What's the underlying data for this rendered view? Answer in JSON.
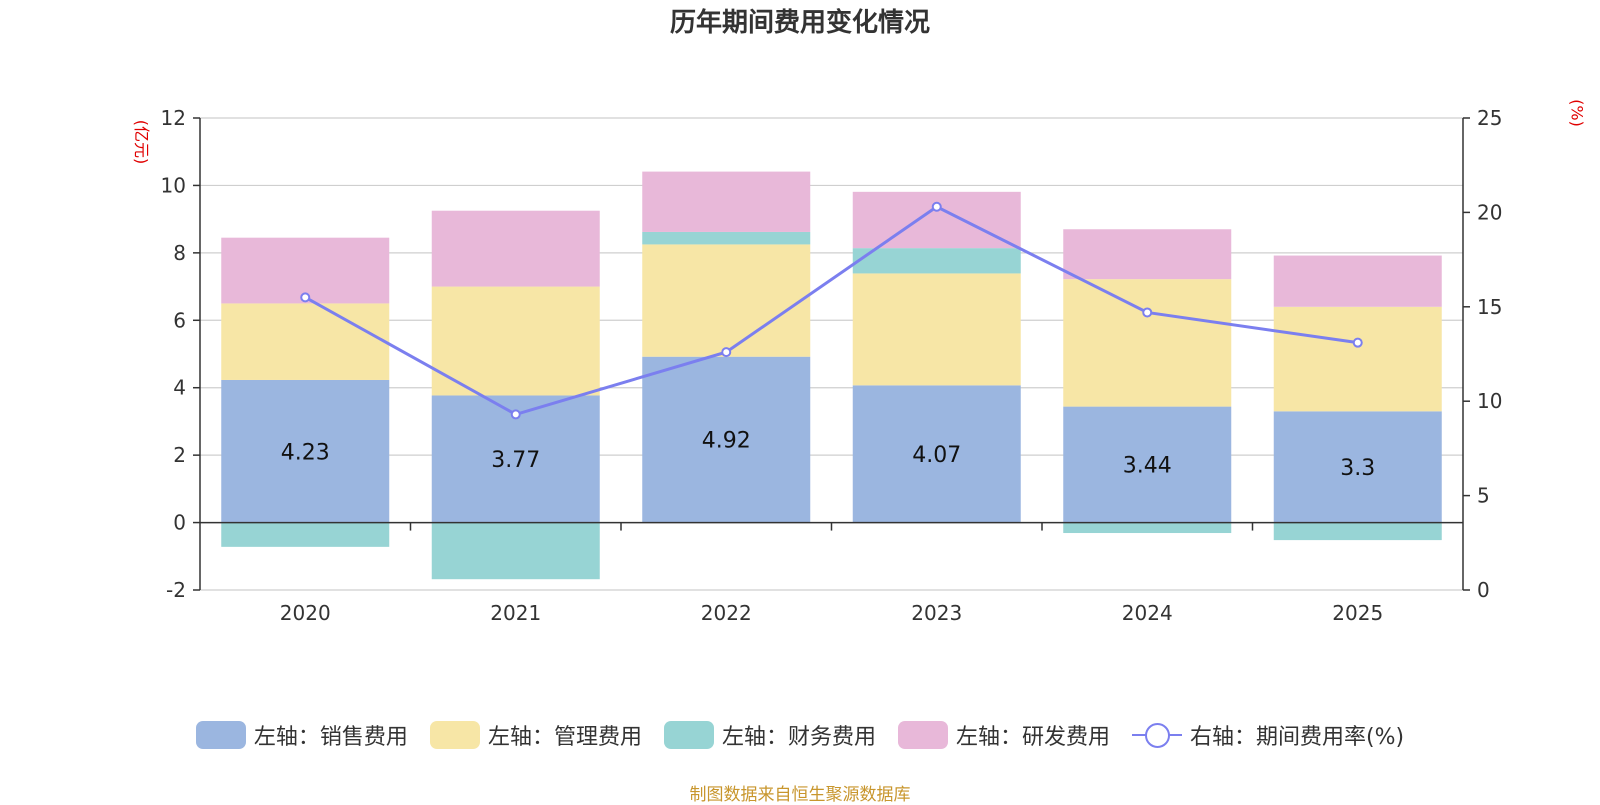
{
  "chart_data": {
    "type": "bar",
    "stacked": true,
    "title": "历年期间费用变化情况",
    "categories": [
      "2020",
      "2021",
      "2022",
      "2023",
      "2024",
      "2025"
    ],
    "left_axis": {
      "unit": "(亿元)",
      "ylim": [
        -2,
        12
      ],
      "ticks": [
        "-2",
        "0",
        "2",
        "4",
        "6",
        "8",
        "10",
        "12"
      ]
    },
    "right_axis": {
      "unit": "(%)",
      "ylim": [
        0,
        25
      ],
      "ticks": [
        "0",
        "5",
        "10",
        "15",
        "20",
        "25"
      ]
    },
    "series": [
      {
        "name": "左轴：销售费用",
        "color": "#9bb6e0",
        "values": [
          4.23,
          3.77,
          4.92,
          4.07,
          3.44,
          3.3
        ],
        "labels": [
          "4.23",
          "3.77",
          "4.92",
          "4.07",
          "3.44",
          "3.3"
        ]
      },
      {
        "name": "左轴：管理费用",
        "color": "#f7e6a6",
        "values": [
          2.27,
          3.23,
          3.33,
          3.32,
          3.78,
          3.1
        ]
      },
      {
        "name": "左轴：财务费用",
        "color": "#97d4d4",
        "values": [
          -0.72,
          -1.68,
          0.37,
          0.75,
          -0.31,
          -0.52
        ]
      },
      {
        "name": "左轴：研发费用",
        "color": "#e8b8d9",
        "values": [
          1.95,
          2.25,
          1.79,
          1.67,
          1.48,
          1.52
        ]
      }
    ],
    "line": {
      "name": "右轴：期间费用率(%)",
      "color": "#7b7fef",
      "values": [
        15.5,
        9.3,
        12.6,
        20.3,
        14.7,
        13.1
      ]
    }
  },
  "source": "制图数据来自恒生聚源数据库"
}
